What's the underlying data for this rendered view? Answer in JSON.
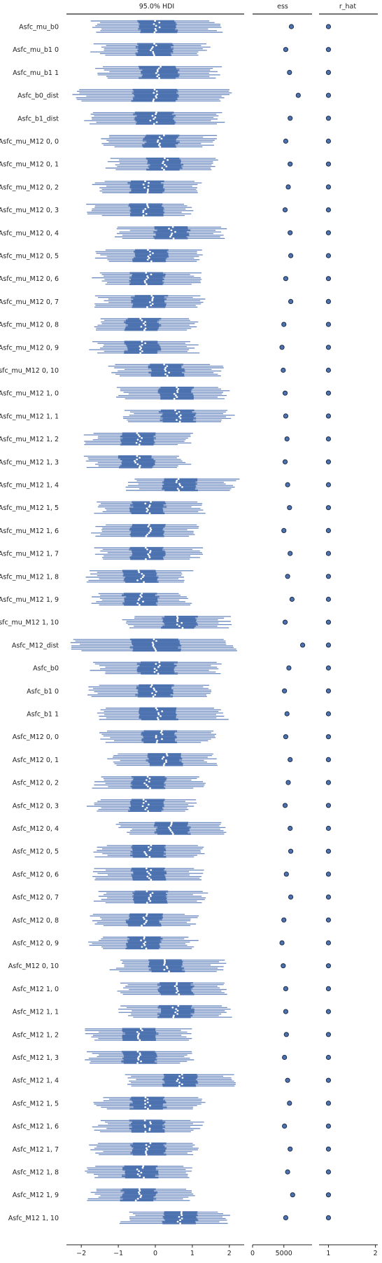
{
  "chart_data": {
    "type": "forest",
    "colors": {
      "hdi": "#4c72b0",
      "hdi_light": "#6a88bf",
      "dot_fill": "#4c72b0",
      "dot_stroke": "#1f2d4a",
      "median": "#ffffff"
    },
    "panels": [
      {
        "title": "95.0% HDI",
        "xlim": [
          -2.4,
          2.4
        ],
        "ticks": [
          -2,
          -1,
          0,
          1,
          2
        ],
        "tick_labels": [
          "−2",
          "−1",
          "0",
          "1",
          "2"
        ]
      },
      {
        "title": "ess",
        "xlim": [
          0,
          9500
        ],
        "ticks": [
          0,
          5000
        ],
        "tick_labels": [
          "0",
          "5000"
        ]
      },
      {
        "title": "r_hat",
        "xlim": [
          0.8,
          2.05
        ],
        "ticks": [
          1,
          2
        ],
        "tick_labels": [
          "1",
          "2"
        ]
      }
    ],
    "variables": [
      {
        "label": "Asfc_mu_b0",
        "center": 0.05,
        "hdi": [
          -1.6,
          1.6
        ],
        "iqr": [
          -0.45,
          0.55
        ],
        "ess": 6200,
        "r_hat": 1.0
      },
      {
        "label": "Asfc_mu_b1 0",
        "center": -0.05,
        "hdi": [
          -1.55,
          1.35
        ],
        "iqr": [
          -0.5,
          0.45
        ],
        "ess": 5300,
        "r_hat": 1.0
      },
      {
        "label": "Asfc_mu_b1 1",
        "center": 0.1,
        "hdi": [
          -1.45,
          1.6
        ],
        "iqr": [
          -0.4,
          0.6
        ],
        "ess": 5900,
        "r_hat": 1.0
      },
      {
        "label": "Asfc_b0_dist",
        "center": 0.0,
        "hdi": [
          -2.05,
          1.95
        ],
        "iqr": [
          -0.6,
          0.6
        ],
        "ess": 7300,
        "r_hat": 1.0
      },
      {
        "label": "Asfc_b1_dist",
        "center": -0.05,
        "hdi": [
          -1.7,
          1.7
        ],
        "iqr": [
          -0.55,
          0.5
        ],
        "ess": 6000,
        "r_hat": 1.0
      },
      {
        "label": "Asfc_mu_M12 0, 0",
        "center": 0.15,
        "hdi": [
          -1.3,
          1.45
        ],
        "iqr": [
          -0.3,
          0.6
        ],
        "ess": 5300,
        "r_hat": 1.0
      },
      {
        "label": "Asfc_mu_M12 0, 1",
        "center": 0.25,
        "hdi": [
          -1.15,
          1.5
        ],
        "iqr": [
          -0.2,
          0.7
        ],
        "ess": 6000,
        "r_hat": 1.0
      },
      {
        "label": "Asfc_mu_M12 0, 2",
        "center": -0.25,
        "hdi": [
          -1.55,
          1.1
        ],
        "iqr": [
          -0.7,
          0.2
        ],
        "ess": 5700,
        "r_hat": 1.0
      },
      {
        "label": "Asfc_mu_M12 0, 3",
        "center": -0.25,
        "hdi": [
          -1.65,
          0.9
        ],
        "iqr": [
          -0.7,
          0.2
        ],
        "ess": 5200,
        "r_hat": 1.0
      },
      {
        "label": "Asfc_mu_M12 0, 4",
        "center": 0.45,
        "hdi": [
          -0.9,
          1.75
        ],
        "iqr": [
          0.0,
          0.9
        ],
        "ess": 6000,
        "r_hat": 1.0
      },
      {
        "label": "Asfc_mu_M12 0, 5",
        "center": -0.15,
        "hdi": [
          -1.45,
          1.2
        ],
        "iqr": [
          -0.6,
          0.3
        ],
        "ess": 6100,
        "r_hat": 1.0
      },
      {
        "label": "Asfc_mu_M12 0, 6",
        "center": -0.2,
        "hdi": [
          -1.5,
          1.1
        ],
        "iqr": [
          -0.65,
          0.25
        ],
        "ess": 5300,
        "r_hat": 1.0
      },
      {
        "label": "Asfc_mu_M12 0, 7",
        "center": -0.15,
        "hdi": [
          -1.45,
          1.2
        ],
        "iqr": [
          -0.6,
          0.3
        ],
        "ess": 6100,
        "r_hat": 1.0
      },
      {
        "label": "Asfc_mu_M12 0, 8",
        "center": -0.35,
        "hdi": [
          -1.6,
          1.0
        ],
        "iqr": [
          -0.8,
          0.1
        ],
        "ess": 5000,
        "r_hat": 1.0
      },
      {
        "label": "Asfc_mu_M12 0, 9",
        "center": -0.35,
        "hdi": [
          -1.6,
          1.0
        ],
        "iqr": [
          -0.8,
          0.1
        ],
        "ess": 4700,
        "r_hat": 1.0
      },
      {
        "label": "Asfc_mu_M12 0, 10",
        "center": 0.3,
        "hdi": [
          -1.05,
          1.65
        ],
        "iqr": [
          -0.15,
          0.75
        ],
        "ess": 4900,
        "r_hat": 1.0
      },
      {
        "label": "Asfc_mu_M12 1, 0",
        "center": 0.55,
        "hdi": [
          -0.85,
          1.85
        ],
        "iqr": [
          0.1,
          1.0
        ],
        "ess": 5200,
        "r_hat": 1.0
      },
      {
        "label": "Asfc_mu_M12 1, 1",
        "center": 0.6,
        "hdi": [
          -0.75,
          1.95
        ],
        "iqr": [
          0.15,
          1.05
        ],
        "ess": 5300,
        "r_hat": 1.0
      },
      {
        "label": "Asfc_mu_M12 1, 2",
        "center": -0.45,
        "hdi": [
          -1.75,
          0.8
        ],
        "iqr": [
          -0.9,
          0.0
        ],
        "ess": 5500,
        "r_hat": 1.0
      },
      {
        "label": "Asfc_mu_M12 1, 3",
        "center": -0.5,
        "hdi": [
          -1.75,
          0.8
        ],
        "iqr": [
          -0.95,
          -0.05
        ],
        "ess": 5200,
        "r_hat": 1.0
      },
      {
        "label": "Asfc_mu_M12 1, 4",
        "center": 0.65,
        "hdi": [
          -0.65,
          2.05
        ],
        "iqr": [
          0.2,
          1.1
        ],
        "ess": 5600,
        "r_hat": 1.0
      },
      {
        "label": "Asfc_mu_M12 1, 5",
        "center": -0.2,
        "hdi": [
          -1.45,
          1.15
        ],
        "iqr": [
          -0.65,
          0.25
        ],
        "ess": 5900,
        "r_hat": 1.0
      },
      {
        "label": "Asfc_mu_M12 1, 6",
        "center": -0.2,
        "hdi": [
          -1.55,
          1.05
        ],
        "iqr": [
          -0.65,
          0.25
        ],
        "ess": 5000,
        "r_hat": 1.0
      },
      {
        "label": "Asfc_mu_M12 1, 7",
        "center": -0.2,
        "hdi": [
          -1.5,
          1.1
        ],
        "iqr": [
          -0.65,
          0.25
        ],
        "ess": 6000,
        "r_hat": 1.0
      },
      {
        "label": "Asfc_mu_M12 1, 8",
        "center": -0.4,
        "hdi": [
          -1.7,
          0.85
        ],
        "iqr": [
          -0.85,
          0.05
        ],
        "ess": 5600,
        "r_hat": 1.0
      },
      {
        "label": "Asfc_mu_M12 1, 9",
        "center": -0.4,
        "hdi": [
          -1.65,
          0.85
        ],
        "iqr": [
          -0.85,
          0.05
        ],
        "ess": 6300,
        "r_hat": 1.0
      },
      {
        "label": "Asfc_mu_M12 1, 10",
        "center": 0.65,
        "hdi": [
          -0.75,
          1.9
        ],
        "iqr": [
          0.2,
          1.1
        ],
        "ess": 5200,
        "r_hat": 1.0
      },
      {
        "label": "Asfc_M12_dist",
        "center": 0.0,
        "hdi": [
          -2.1,
          2.0
        ],
        "iqr": [
          -0.65,
          0.65
        ],
        "ess": 8000,
        "r_hat": 1.0
      },
      {
        "label": "Asfc_b0",
        "center": 0.05,
        "hdi": [
          -1.55,
          1.6
        ],
        "iqr": [
          -0.45,
          0.55
        ],
        "ess": 5800,
        "r_hat": 1.0
      },
      {
        "label": "Asfc_b1 0",
        "center": -0.05,
        "hdi": [
          -1.65,
          1.5
        ],
        "iqr": [
          -0.5,
          0.45
        ],
        "ess": 5100,
        "r_hat": 1.0
      },
      {
        "label": "Asfc_b1 1",
        "center": 0.1,
        "hdi": [
          -1.5,
          1.8
        ],
        "iqr": [
          -0.4,
          0.6
        ],
        "ess": 5500,
        "r_hat": 1.0
      },
      {
        "label": "Asfc_M12 0, 0",
        "center": 0.1,
        "hdi": [
          -1.3,
          1.45
        ],
        "iqr": [
          -0.35,
          0.55
        ],
        "ess": 5300,
        "r_hat": 1.0
      },
      {
        "label": "Asfc_M12 0, 1",
        "center": 0.25,
        "hdi": [
          -1.15,
          1.5
        ],
        "iqr": [
          -0.2,
          0.7
        ],
        "ess": 6000,
        "r_hat": 1.0
      },
      {
        "label": "Asfc_M12 0, 2",
        "center": -0.2,
        "hdi": [
          -1.5,
          1.15
        ],
        "iqr": [
          -0.65,
          0.25
        ],
        "ess": 5700,
        "r_hat": 1.0
      },
      {
        "label": "Asfc_M12 0, 3",
        "center": -0.25,
        "hdi": [
          -1.65,
          0.9
        ],
        "iqr": [
          -0.7,
          0.2
        ],
        "ess": 5200,
        "r_hat": 1.0
      },
      {
        "label": "Asfc_M12 0, 4",
        "center": 0.45,
        "hdi": [
          -0.85,
          1.75
        ],
        "iqr": [
          0.0,
          0.9
        ],
        "ess": 6000,
        "r_hat": 1.0
      },
      {
        "label": "Asfc_M12 0, 5",
        "center": -0.2,
        "hdi": [
          -1.45,
          1.15
        ],
        "iqr": [
          -0.65,
          0.25
        ],
        "ess": 6100,
        "r_hat": 1.0
      },
      {
        "label": "Asfc_M12 0, 6",
        "center": -0.2,
        "hdi": [
          -1.5,
          1.1
        ],
        "iqr": [
          -0.65,
          0.25
        ],
        "ess": 5400,
        "r_hat": 1.0
      },
      {
        "label": "Asfc_M12 0, 7",
        "center": -0.15,
        "hdi": [
          -1.45,
          1.2
        ],
        "iqr": [
          -0.6,
          0.3
        ],
        "ess": 6100,
        "r_hat": 1.0
      },
      {
        "label": "Asfc_M12 0, 8",
        "center": -0.3,
        "hdi": [
          -1.6,
          1.0
        ],
        "iqr": [
          -0.75,
          0.15
        ],
        "ess": 5000,
        "r_hat": 1.0
      },
      {
        "label": "Asfc_M12 0, 9",
        "center": -0.3,
        "hdi": [
          -1.6,
          1.0
        ],
        "iqr": [
          -0.75,
          0.15
        ],
        "ess": 4700,
        "r_hat": 1.0
      },
      {
        "label": "Asfc_M12 0, 10",
        "center": 0.3,
        "hdi": [
          -1.05,
          1.7
        ],
        "iqr": [
          -0.15,
          0.75
        ],
        "ess": 4900,
        "r_hat": 1.0
      },
      {
        "label": "Asfc_M12 1, 0",
        "center": 0.55,
        "hdi": [
          -0.85,
          1.85
        ],
        "iqr": [
          0.1,
          1.0
        ],
        "ess": 5300,
        "r_hat": 1.0
      },
      {
        "label": "Asfc_M12 1, 1",
        "center": 0.55,
        "hdi": [
          -0.8,
          1.9
        ],
        "iqr": [
          0.1,
          1.0
        ],
        "ess": 5300,
        "r_hat": 1.0
      },
      {
        "label": "Asfc_M12 1, 2",
        "center": -0.4,
        "hdi": [
          -1.75,
          0.8
        ],
        "iqr": [
          -0.85,
          0.05
        ],
        "ess": 5400,
        "r_hat": 1.0
      },
      {
        "label": "Asfc_M12 1, 3",
        "center": -0.45,
        "hdi": [
          -1.7,
          0.85
        ],
        "iqr": [
          -0.9,
          0.0
        ],
        "ess": 5100,
        "r_hat": 1.0
      },
      {
        "label": "Asfc_M12 1, 4",
        "center": 0.65,
        "hdi": [
          -0.65,
          2.05
        ],
        "iqr": [
          0.2,
          1.1
        ],
        "ess": 5600,
        "r_hat": 1.0
      },
      {
        "label": "Asfc_M12 1, 5",
        "center": -0.2,
        "hdi": [
          -1.45,
          1.15
        ],
        "iqr": [
          -0.65,
          0.25
        ],
        "ess": 5900,
        "r_hat": 1.0
      },
      {
        "label": "Asfc_M12 1, 6",
        "center": -0.2,
        "hdi": [
          -1.5,
          1.1
        ],
        "iqr": [
          -0.65,
          0.25
        ],
        "ess": 5100,
        "r_hat": 1.0
      },
      {
        "label": "Asfc_M12 1, 7",
        "center": -0.2,
        "hdi": [
          -1.6,
          1.05
        ],
        "iqr": [
          -0.65,
          0.25
        ],
        "ess": 6000,
        "r_hat": 1.0
      },
      {
        "label": "Asfc_M12 1, 8",
        "center": -0.4,
        "hdi": [
          -1.75,
          0.9
        ],
        "iqr": [
          -0.85,
          0.05
        ],
        "ess": 5600,
        "r_hat": 1.0
      },
      {
        "label": "Asfc_M12 1, 9",
        "center": -0.45,
        "hdi": [
          -1.65,
          0.85
        ],
        "iqr": [
          -0.9,
          0.0
        ],
        "ess": 6400,
        "r_hat": 1.0
      },
      {
        "label": "Asfc_M12 1, 10",
        "center": 0.65,
        "hdi": [
          -0.75,
          1.9
        ],
        "iqr": [
          0.2,
          1.1
        ],
        "ess": 5300,
        "r_hat": 1.0
      }
    ]
  }
}
